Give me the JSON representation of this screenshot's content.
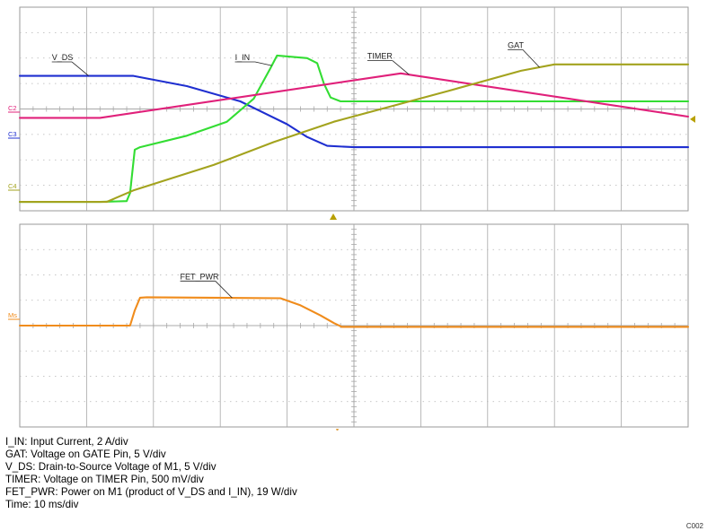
{
  "chart_data": [
    {
      "type": "line",
      "panel": "top",
      "x_divisions": 10,
      "y_divisions": 8,
      "channel_markers": [
        "C2",
        "C3",
        "C4"
      ],
      "series": [
        {
          "name": "V_DS",
          "channel": "C3",
          "color": "#1f2fd0",
          "points": [
            [
              0,
              5.3
            ],
            [
              1.7,
              5.3
            ],
            [
              2.5,
              4.9
            ],
            [
              3.3,
              4.3
            ],
            [
              4.0,
              3.4
            ],
            [
              4.3,
              2.9
            ],
            [
              4.6,
              2.55
            ],
            [
              5.0,
              2.5
            ],
            [
              10,
              2.5
            ]
          ]
        },
        {
          "name": "I_IN",
          "color": "#33dd33",
          "points": [
            [
              0,
              0.35
            ],
            [
              1.2,
              0.35
            ],
            [
              1.6,
              0.38
            ],
            [
              1.65,
              0.7
            ],
            [
              1.72,
              2.4
            ],
            [
              1.8,
              2.5
            ],
            [
              2.5,
              2.95
            ],
            [
              3.1,
              3.5
            ],
            [
              3.5,
              4.4
            ],
            [
              3.75,
              5.6
            ],
            [
              3.85,
              6.1
            ],
            [
              4.3,
              6.0
            ],
            [
              4.45,
              5.8
            ],
            [
              4.55,
              5.0
            ],
            [
              4.65,
              4.45
            ],
            [
              4.8,
              4.3
            ],
            [
              10,
              4.3
            ]
          ]
        },
        {
          "name": "TIMER",
          "channel": "C2",
          "color": "#e0207a",
          "points": [
            [
              0,
              3.65
            ],
            [
              1.2,
              3.65
            ],
            [
              5.7,
              5.4
            ],
            [
              10,
              3.7
            ]
          ]
        },
        {
          "name": "GAT",
          "channel": "C4",
          "color": "#a3a31e",
          "points": [
            [
              0,
              0.35
            ],
            [
              1.3,
              0.35
            ],
            [
              1.7,
              0.8
            ],
            [
              2.9,
              1.8
            ],
            [
              3.8,
              2.7
            ],
            [
              4.7,
              3.5
            ],
            [
              6.4,
              4.7
            ],
            [
              7.5,
              5.5
            ],
            [
              8.0,
              5.75
            ],
            [
              10,
              5.75
            ]
          ]
        }
      ],
      "labels": [
        {
          "text": "V_DS",
          "series": "V_DS",
          "x": 0.48,
          "y": 5.92
        },
        {
          "text": "I_IN",
          "series": "I_IN",
          "x": 3.22,
          "y": 5.92
        },
        {
          "text": "TIMER",
          "series": "TIMER",
          "x": 5.2,
          "y": 5.97
        },
        {
          "text": "GAT",
          "series": "GAT",
          "x": 7.3,
          "y": 6.4
        }
      ]
    },
    {
      "type": "line",
      "panel": "bottom",
      "x_divisions": 10,
      "y_divisions": 8,
      "channel_markers": [
        "Ms"
      ],
      "series": [
        {
          "name": "FET_PWR",
          "channel": "Ms",
          "color": "#f08c1c",
          "points": [
            [
              0,
              4.0
            ],
            [
              1.65,
              4.0
            ],
            [
              1.72,
              4.6
            ],
            [
              1.8,
              5.1
            ],
            [
              1.9,
              5.12
            ],
            [
              3.9,
              5.08
            ],
            [
              4.2,
              4.8
            ],
            [
              4.5,
              4.4
            ],
            [
              4.7,
              4.1
            ],
            [
              4.82,
              3.95
            ],
            [
              10,
              3.95
            ]
          ]
        }
      ],
      "labels": [
        {
          "text": "FET_PWR",
          "series": "FET_PWR",
          "x": 2.4,
          "y": 5.83
        }
      ]
    }
  ],
  "legend_lines": [
    "I_IN: Input Current, 2 A/div",
    "GAT: Voltage on GATE Pin, 5 V/div",
    "V_DS: Drain-to-Source Voltage of M1, 5 V/div",
    "TIMER: Voltage on TIMER Pin, 500 mV/div",
    "FET_PWR: Power on M1 (product of V_DS and I_IN), 19 W/div",
    "Time: 10 ms/div"
  ],
  "figure_id": "C002"
}
